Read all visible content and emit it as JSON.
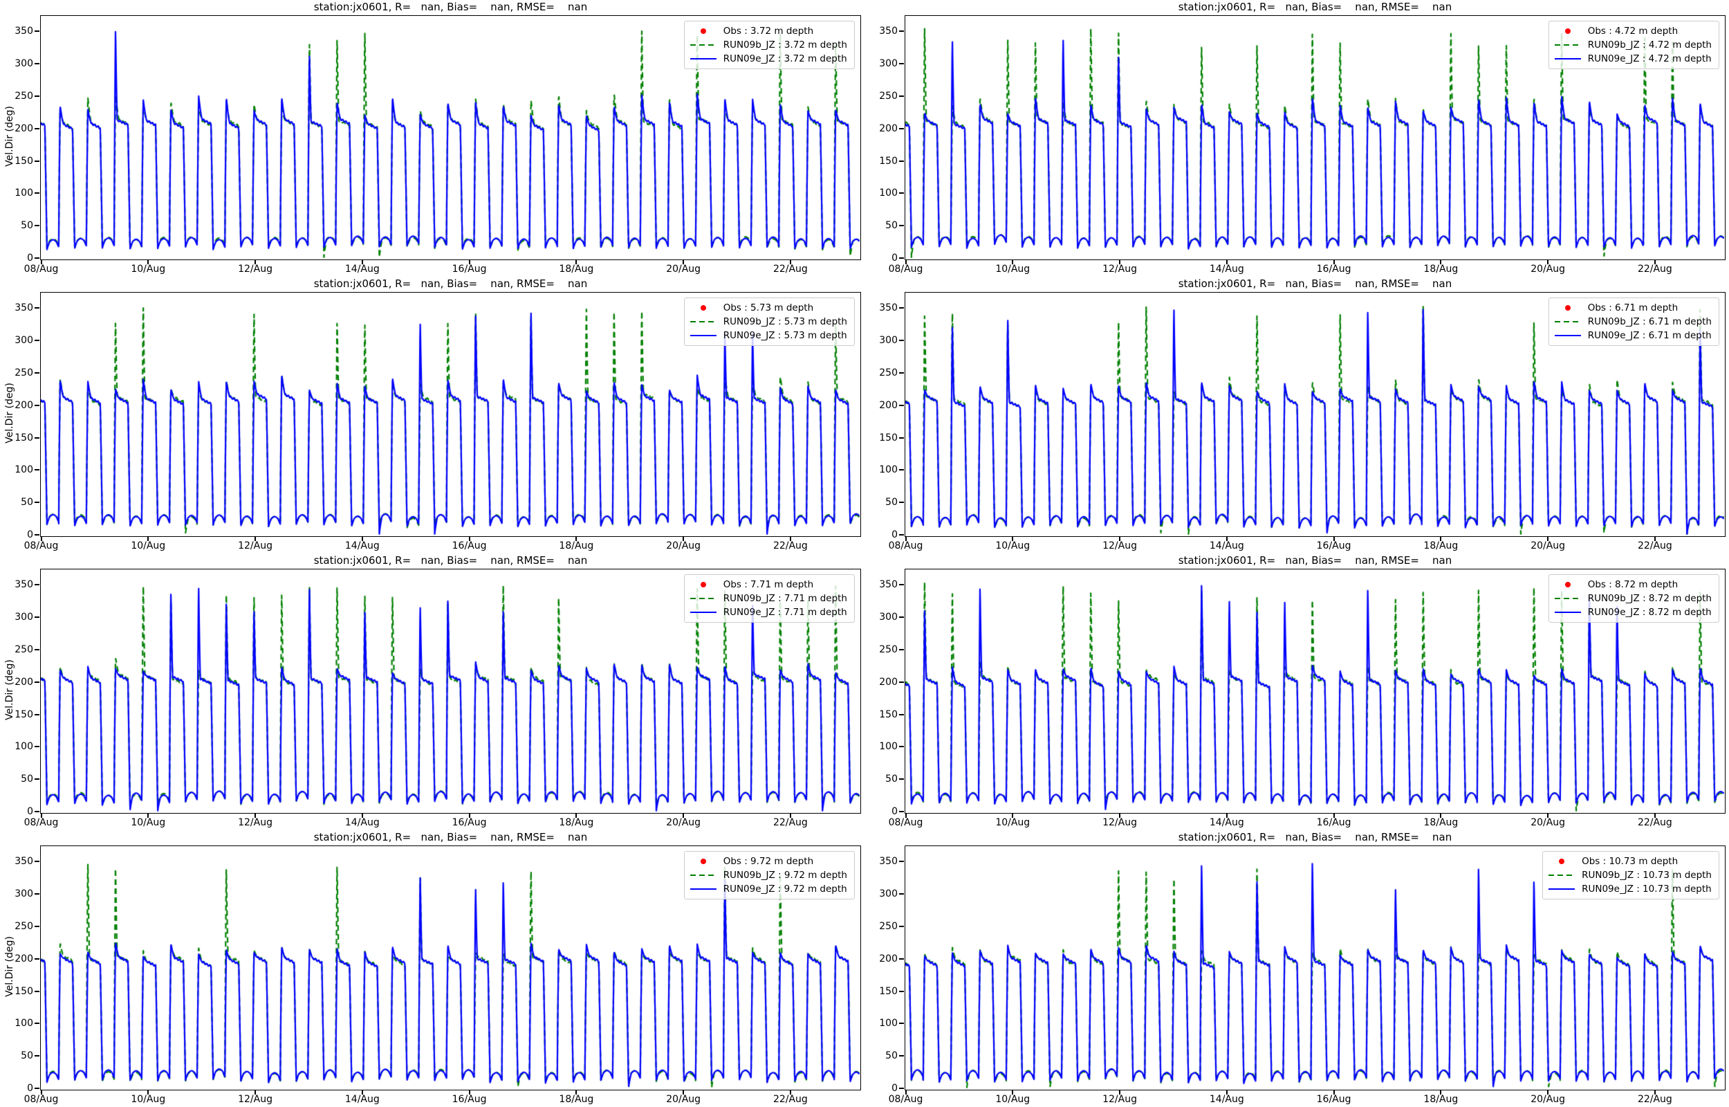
{
  "figure": {
    "background": "#ffffff",
    "ylabel": "Vel.Dir (deg)",
    "station": "jx0601",
    "stats_text": {
      "r": "nan",
      "bias": "nan",
      "rmse": "nan"
    },
    "colors": {
      "obs": "#ff0000",
      "run09b": "#008000",
      "run09e": "#0000ff",
      "axis": "#000000"
    }
  },
  "chart_data": [
    {
      "type": "line",
      "title": "station:jx0601, R=   nan, Bias=    nan, RMSE=    nan",
      "depth_m": 3.72,
      "ylabel": "Vel.Dir (deg)",
      "ylim": [
        0,
        375
      ],
      "yticks": [
        0,
        50,
        100,
        150,
        200,
        250,
        300,
        350
      ],
      "x_tick_labels": [
        "08/Aug",
        "10/Aug",
        "12/Aug",
        "14/Aug",
        "16/Aug",
        "18/Aug",
        "20/Aug",
        "22/Aug"
      ],
      "x_tick_days": [
        0,
        2,
        4,
        6,
        8,
        10,
        12,
        14
      ],
      "x_span_days": 15.3,
      "legend_loc": "upper right",
      "grid": false,
      "cycle_seed": 101,
      "series": [
        {
          "name": "Obs : 3.72 m depth",
          "type": "scatter",
          "marker": "dot",
          "color": "#ff0000",
          "values": []
        },
        {
          "name": "RUN09b_JZ : 3.72 m depth",
          "type": "line",
          "style": "dashed",
          "color": "#008000",
          "approx_waveform": {
            "high_deg": 208,
            "low_deg": 28,
            "overshoot_deg": 32,
            "period_days": 0.5175,
            "first_rise_day": 0.335,
            "seed": 11,
            "spike_prob": 0.38,
            "spike_range_deg": [
              332,
              364
            ],
            "down_spike_prob": 0.05
          }
        },
        {
          "name": "RUN09e_JZ : 3.72 m depth",
          "type": "line",
          "style": "solid",
          "color": "#0000ff",
          "approx_waveform": {
            "high_deg": 208,
            "low_deg": 28,
            "overshoot_deg": 30,
            "period_days": 0.5175,
            "first_rise_day": 0.335,
            "seed": 12,
            "spike_prob": 0.13,
            "spike_range_deg": [
              315,
              362
            ],
            "down_spike_prob": 0.02
          }
        }
      ]
    },
    {
      "type": "line",
      "title": "station:jx0601, R=   nan, Bias=    nan, RMSE=    nan",
      "depth_m": 4.72,
      "ylabel": "Vel.Dir (deg)",
      "ylim": [
        0,
        375
      ],
      "yticks": [
        0,
        50,
        100,
        150,
        200,
        250,
        300,
        350
      ],
      "x_tick_labels": [
        "08/Aug",
        "10/Aug",
        "12/Aug",
        "14/Aug",
        "16/Aug",
        "18/Aug",
        "20/Aug",
        "22/Aug"
      ],
      "x_tick_days": [
        0,
        2,
        4,
        6,
        8,
        10,
        12,
        14
      ],
      "x_span_days": 15.3,
      "legend_loc": "upper right",
      "grid": false,
      "cycle_seed": 102,
      "series": [
        {
          "name": "Obs : 4.72 m depth",
          "type": "scatter",
          "marker": "dot",
          "color": "#ff0000",
          "values": []
        },
        {
          "name": "RUN09b_JZ : 4.72 m depth",
          "type": "line",
          "style": "dashed",
          "color": "#008000",
          "approx_waveform": {
            "high_deg": 210,
            "low_deg": 30,
            "overshoot_deg": 30,
            "period_days": 0.5175,
            "first_rise_day": 0.335,
            "seed": 21,
            "spike_prob": 0.45,
            "spike_range_deg": [
              332,
              364
            ],
            "down_spike_prob": 0.07
          }
        },
        {
          "name": "RUN09e_JZ : 4.72 m depth",
          "type": "line",
          "style": "solid",
          "color": "#0000ff",
          "approx_waveform": {
            "high_deg": 210,
            "low_deg": 30,
            "overshoot_deg": 28,
            "period_days": 0.5175,
            "first_rise_day": 0.335,
            "seed": 22,
            "spike_prob": 0.17,
            "spike_range_deg": [
              315,
              362
            ],
            "down_spike_prob": 0.03
          }
        }
      ]
    },
    {
      "type": "line",
      "title": "station:jx0601, R=   nan, Bias=    nan, RMSE=    nan",
      "depth_m": 5.73,
      "ylabel": "Vel.Dir (deg)",
      "ylim": [
        0,
        375
      ],
      "yticks": [
        0,
        50,
        100,
        150,
        200,
        250,
        300,
        350
      ],
      "x_tick_labels": [
        "08/Aug",
        "10/Aug",
        "12/Aug",
        "14/Aug",
        "16/Aug",
        "18/Aug",
        "20/Aug",
        "22/Aug"
      ],
      "x_tick_days": [
        0,
        2,
        4,
        6,
        8,
        10,
        12,
        14
      ],
      "x_span_days": 15.3,
      "legend_loc": "upper right",
      "grid": false,
      "cycle_seed": 103,
      "series": [
        {
          "name": "Obs : 5.73 m depth",
          "type": "scatter",
          "marker": "dot",
          "color": "#ff0000",
          "values": []
        },
        {
          "name": "RUN09b_JZ : 5.73 m depth",
          "type": "line",
          "style": "dashed",
          "color": "#008000",
          "approx_waveform": {
            "high_deg": 210,
            "low_deg": 27,
            "overshoot_deg": 26,
            "period_days": 0.5175,
            "first_rise_day": 0.335,
            "seed": 31,
            "spike_prob": 0.5,
            "spike_range_deg": [
              330,
              364
            ],
            "down_spike_prob": 0.09
          }
        },
        {
          "name": "RUN09e_JZ : 5.73 m depth",
          "type": "line",
          "style": "solid",
          "color": "#0000ff",
          "approx_waveform": {
            "high_deg": 210,
            "low_deg": 27,
            "overshoot_deg": 24,
            "period_days": 0.5175,
            "first_rise_day": 0.335,
            "seed": 32,
            "spike_prob": 0.2,
            "spike_range_deg": [
              315,
              362
            ],
            "down_spike_prob": 0.04
          }
        }
      ]
    },
    {
      "type": "line",
      "title": "station:jx0601, R=   nan, Bias=    nan, RMSE=    nan",
      "depth_m": 6.71,
      "ylabel": "Vel.Dir (deg)",
      "ylim": [
        0,
        375
      ],
      "yticks": [
        0,
        50,
        100,
        150,
        200,
        250,
        300,
        350
      ],
      "x_tick_labels": [
        "08/Aug",
        "10/Aug",
        "12/Aug",
        "14/Aug",
        "16/Aug",
        "18/Aug",
        "20/Aug",
        "22/Aug"
      ],
      "x_tick_days": [
        0,
        2,
        4,
        6,
        8,
        10,
        12,
        14
      ],
      "x_span_days": 15.3,
      "legend_loc": "upper right",
      "grid": false,
      "cycle_seed": 104,
      "series": [
        {
          "name": "Obs : 6.71 m depth",
          "type": "scatter",
          "marker": "dot",
          "color": "#ff0000",
          "values": []
        },
        {
          "name": "RUN09b_JZ : 6.71 m depth",
          "type": "line",
          "style": "dashed",
          "color": "#008000",
          "approx_waveform": {
            "high_deg": 208,
            "low_deg": 26,
            "overshoot_deg": 26,
            "period_days": 0.5175,
            "first_rise_day": 0.335,
            "seed": 41,
            "spike_prob": 0.5,
            "spike_range_deg": [
              330,
              364
            ],
            "down_spike_prob": 0.09
          }
        },
        {
          "name": "RUN09e_JZ : 6.71 m depth",
          "type": "line",
          "style": "solid",
          "color": "#0000ff",
          "approx_waveform": {
            "high_deg": 208,
            "low_deg": 26,
            "overshoot_deg": 24,
            "period_days": 0.5175,
            "first_rise_day": 0.335,
            "seed": 42,
            "spike_prob": 0.22,
            "spike_range_deg": [
              315,
              362
            ],
            "down_spike_prob": 0.04
          }
        }
      ]
    },
    {
      "type": "line",
      "title": "station:jx0601, R=   nan, Bias=    nan, RMSE=    nan",
      "depth_m": 7.71,
      "ylabel": "Vel.Dir (deg)",
      "ylim": [
        0,
        375
      ],
      "yticks": [
        0,
        50,
        100,
        150,
        200,
        250,
        300,
        350
      ],
      "x_tick_labels": [
        "08/Aug",
        "10/Aug",
        "12/Aug",
        "14/Aug",
        "16/Aug",
        "18/Aug",
        "20/Aug",
        "22/Aug"
      ],
      "x_tick_days": [
        0,
        2,
        4,
        6,
        8,
        10,
        12,
        14
      ],
      "x_span_days": 15.3,
      "legend_loc": "upper right",
      "grid": false,
      "cycle_seed": 105,
      "series": [
        {
          "name": "Obs : 7.71 m depth",
          "type": "scatter",
          "marker": "dot",
          "color": "#ff0000",
          "values": []
        },
        {
          "name": "RUN09b_JZ : 7.71 m depth",
          "type": "line",
          "style": "dashed",
          "color": "#008000",
          "approx_waveform": {
            "high_deg": 205,
            "low_deg": 26,
            "overshoot_deg": 20,
            "period_days": 0.5175,
            "first_rise_day": 0.335,
            "seed": 51,
            "spike_prob": 0.45,
            "spike_range_deg": [
              330,
              364
            ],
            "down_spike_prob": 0.08
          }
        },
        {
          "name": "RUN09e_JZ : 7.71 m depth",
          "type": "line",
          "style": "solid",
          "color": "#0000ff",
          "approx_waveform": {
            "high_deg": 205,
            "low_deg": 26,
            "overshoot_deg": 19,
            "period_days": 0.5175,
            "first_rise_day": 0.335,
            "seed": 52,
            "spike_prob": 0.22,
            "spike_range_deg": [
              315,
              362
            ],
            "down_spike_prob": 0.05
          }
        }
      ]
    },
    {
      "type": "line",
      "title": "station:jx0601, R=   nan, Bias=    nan, RMSE=    nan",
      "depth_m": 8.72,
      "ylabel": "Vel.Dir (deg)",
      "ylim": [
        0,
        375
      ],
      "yticks": [
        0,
        50,
        100,
        150,
        200,
        250,
        300,
        350
      ],
      "x_tick_labels": [
        "08/Aug",
        "10/Aug",
        "12/Aug",
        "14/Aug",
        "16/Aug",
        "18/Aug",
        "20/Aug",
        "22/Aug"
      ],
      "x_tick_days": [
        0,
        2,
        4,
        6,
        8,
        10,
        12,
        14
      ],
      "x_span_days": 15.3,
      "legend_loc": "upper right",
      "grid": false,
      "cycle_seed": 106,
      "series": [
        {
          "name": "Obs : 8.72 m depth",
          "type": "scatter",
          "marker": "dot",
          "color": "#ff0000",
          "values": []
        },
        {
          "name": "RUN09b_JZ : 8.72 m depth",
          "type": "line",
          "style": "dashed",
          "color": "#008000",
          "approx_waveform": {
            "high_deg": 203,
            "low_deg": 25,
            "overshoot_deg": 20,
            "period_days": 0.5175,
            "first_rise_day": 0.335,
            "seed": 61,
            "spike_prob": 0.45,
            "spike_range_deg": [
              330,
              364
            ],
            "down_spike_prob": 0.08
          }
        },
        {
          "name": "RUN09e_JZ : 8.72 m depth",
          "type": "line",
          "style": "solid",
          "color": "#0000ff",
          "approx_waveform": {
            "high_deg": 203,
            "low_deg": 25,
            "overshoot_deg": 19,
            "period_days": 0.5175,
            "first_rise_day": 0.335,
            "seed": 62,
            "spike_prob": 0.2,
            "spike_range_deg": [
              315,
              362
            ],
            "down_spike_prob": 0.05
          }
        }
      ]
    },
    {
      "type": "line",
      "title": "station:jx0601, R=   nan, Bias=    nan, RMSE=    nan",
      "depth_m": 9.72,
      "ylabel": "Vel.Dir (deg)",
      "ylim": [
        0,
        375
      ],
      "yticks": [
        0,
        50,
        100,
        150,
        200,
        250,
        300,
        350
      ],
      "x_tick_labels": [
        "08/Aug",
        "10/Aug",
        "12/Aug",
        "14/Aug",
        "16/Aug",
        "18/Aug",
        "20/Aug",
        "22/Aug"
      ],
      "x_tick_days": [
        0,
        2,
        4,
        6,
        8,
        10,
        12,
        14
      ],
      "x_span_days": 15.3,
      "legend_loc": "upper right",
      "grid": false,
      "cycle_seed": 107,
      "series": [
        {
          "name": "Obs : 9.72 m depth",
          "type": "scatter",
          "marker": "dot",
          "color": "#ff0000",
          "values": []
        },
        {
          "name": "RUN09b_JZ : 9.72 m depth",
          "type": "line",
          "style": "dashed",
          "color": "#008000",
          "approx_waveform": {
            "high_deg": 198,
            "low_deg": 24,
            "overshoot_deg": 18,
            "period_days": 0.5175,
            "first_rise_day": 0.335,
            "seed": 71,
            "spike_prob": 0.42,
            "spike_range_deg": [
              330,
              364
            ],
            "down_spike_prob": 0.1
          }
        },
        {
          "name": "RUN09e_JZ : 9.72 m depth",
          "type": "line",
          "style": "solid",
          "color": "#0000ff",
          "approx_waveform": {
            "high_deg": 198,
            "low_deg": 24,
            "overshoot_deg": 18,
            "period_days": 0.5175,
            "first_rise_day": 0.335,
            "seed": 72,
            "spike_prob": 0.25,
            "spike_range_deg": [
              315,
              362
            ],
            "down_spike_prob": 0.05
          }
        }
      ]
    },
    {
      "type": "line",
      "title": "station:jx0601, R=   nan, Bias=    nan, RMSE=    nan",
      "depth_m": 10.73,
      "ylabel": "Vel.Dir (deg)",
      "ylim": [
        0,
        375
      ],
      "yticks": [
        0,
        50,
        100,
        150,
        200,
        250,
        300,
        350
      ],
      "x_tick_labels": [
        "08/Aug",
        "10/Aug",
        "12/Aug",
        "14/Aug",
        "16/Aug",
        "18/Aug",
        "20/Aug",
        "22/Aug"
      ],
      "x_tick_days": [
        0,
        2,
        4,
        6,
        8,
        10,
        12,
        14
      ],
      "x_span_days": 15.3,
      "legend_loc": "upper right",
      "grid": false,
      "cycle_seed": 108,
      "series": [
        {
          "name": "Obs : 10.73 m depth",
          "type": "scatter",
          "marker": "dot",
          "color": "#ff0000",
          "values": []
        },
        {
          "name": "RUN09b_JZ : 10.73 m depth",
          "type": "line",
          "style": "dashed",
          "color": "#008000",
          "approx_waveform": {
            "high_deg": 197,
            "low_deg": 24,
            "overshoot_deg": 16,
            "period_days": 0.5175,
            "first_rise_day": 0.335,
            "seed": 81,
            "spike_prob": 0.45,
            "spike_range_deg": [
              330,
              364
            ],
            "down_spike_prob": 0.12
          }
        },
        {
          "name": "RUN09e_JZ : 10.73 m depth",
          "type": "line",
          "style": "solid",
          "color": "#0000ff",
          "approx_waveform": {
            "high_deg": 197,
            "low_deg": 24,
            "overshoot_deg": 16,
            "period_days": 0.5175,
            "first_rise_day": 0.335,
            "seed": 82,
            "spike_prob": 0.28,
            "spike_range_deg": [
              315,
              362
            ],
            "down_spike_prob": 0.06
          }
        }
      ]
    }
  ]
}
